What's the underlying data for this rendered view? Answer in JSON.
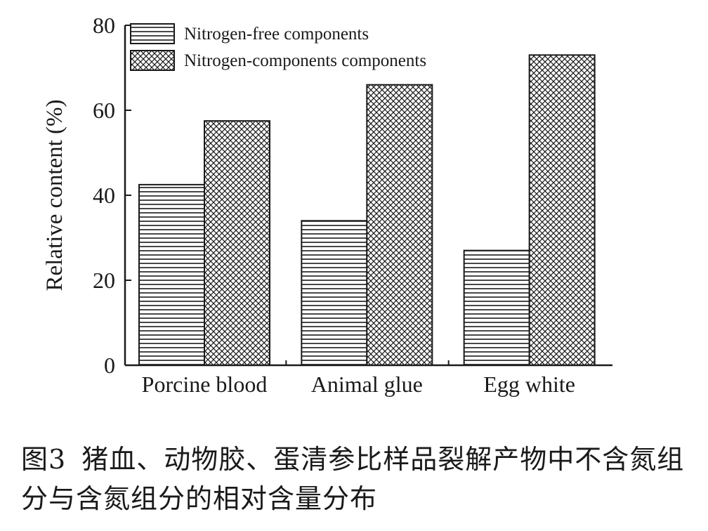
{
  "chart_data": {
    "type": "bar",
    "categories": [
      "Porcine blood",
      "Animal glue",
      "Egg white"
    ],
    "series": [
      {
        "name": "Nitrogen-free components",
        "values": [
          42.5,
          34.0,
          27.0
        ],
        "pattern": "horizontal-lines"
      },
      {
        "name": "Nitrogen-components components",
        "values": [
          57.5,
          66.0,
          73.0
        ],
        "pattern": "crosshatch"
      }
    ],
    "title": "",
    "xlabel": "",
    "ylabel": "Relative content (%)",
    "ylim": [
      0,
      80
    ],
    "yticks": [
      0,
      20,
      40,
      60,
      80
    ],
    "grid": false,
    "legend_position": "top-left",
    "colors": {
      "ink": "#1a1a1a",
      "background": "#ffffff"
    }
  },
  "caption": {
    "figure_number": "图3",
    "text": "猪血、动物胶、蛋清参比样品裂解产物中不含氮组分与含氮组分的相对含量分布"
  }
}
